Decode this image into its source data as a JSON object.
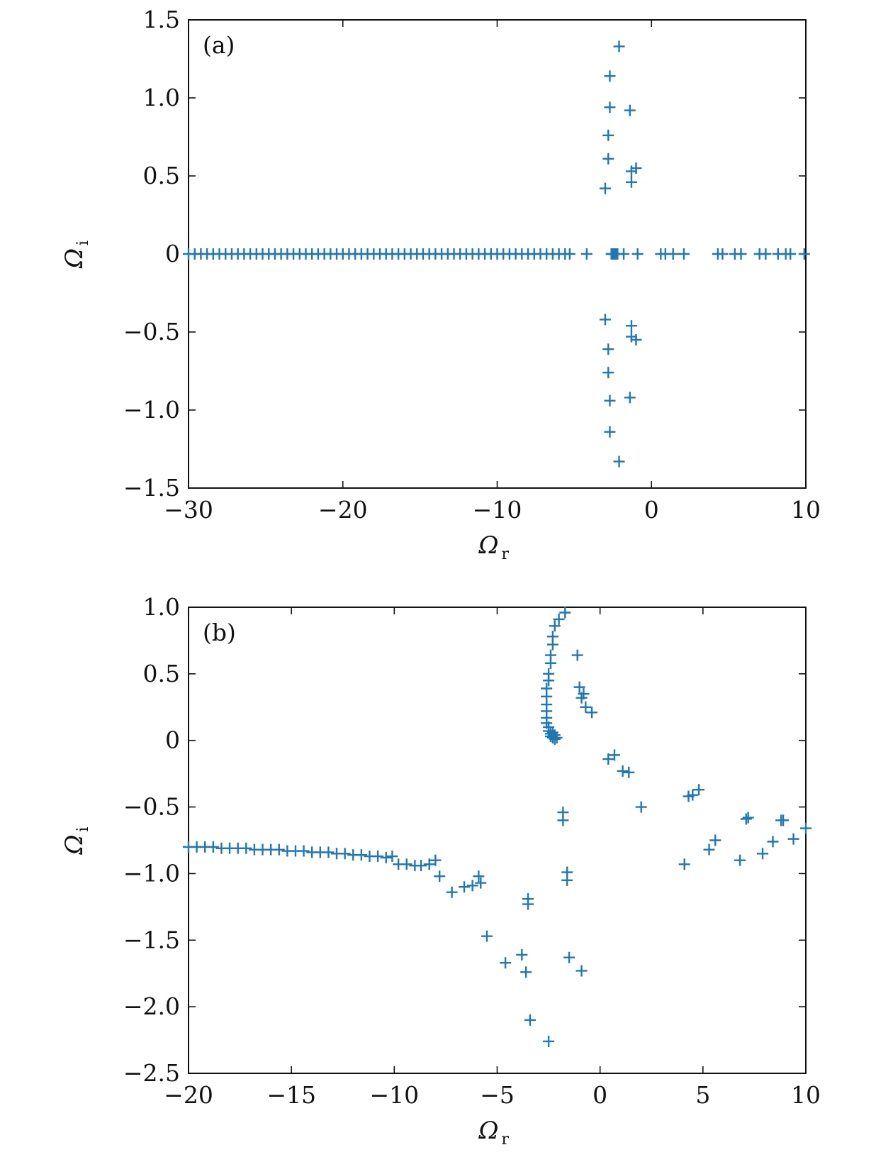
{
  "colors": {
    "marker": "#1f77b4",
    "axis": "#111111"
  },
  "chart_data": [
    {
      "type": "scatter",
      "panel_label": "(a)",
      "marker": "plus",
      "xlabel": {
        "symbol": "Ω",
        "sub": "r"
      },
      "ylabel": {
        "symbol": "Ω",
        "sub": "i"
      },
      "xlim": [
        -30,
        10
      ],
      "ylim": [
        -1.5,
        1.5
      ],
      "xticks": [
        -30,
        -20,
        -10,
        0,
        10
      ],
      "xtick_labels": [
        "−30",
        "−20",
        "−10",
        "0",
        "10"
      ],
      "yticks": [
        -1.5,
        -1.0,
        -0.5,
        0,
        0.5,
        1.0,
        1.5
      ],
      "ytick_labels": [
        "−1.5",
        "−1.0",
        "−0.5",
        "0",
        "0.5",
        "1.0",
        "1.5"
      ],
      "points": [
        [
          -30,
          0
        ],
        [
          -29.6,
          0
        ],
        [
          -29.2,
          0
        ],
        [
          -28.8,
          0
        ],
        [
          -28.4,
          0
        ],
        [
          -28,
          0
        ],
        [
          -27.6,
          0
        ],
        [
          -27.2,
          0
        ],
        [
          -26.8,
          0
        ],
        [
          -26.4,
          0
        ],
        [
          -26,
          0
        ],
        [
          -25.6,
          0
        ],
        [
          -25.2,
          0
        ],
        [
          -24.8,
          0
        ],
        [
          -24.4,
          0
        ],
        [
          -24,
          0
        ],
        [
          -23.6,
          0
        ],
        [
          -23.2,
          0
        ],
        [
          -22.8,
          0
        ],
        [
          -22.4,
          0
        ],
        [
          -22,
          0
        ],
        [
          -21.6,
          0
        ],
        [
          -21.2,
          0
        ],
        [
          -20.8,
          0
        ],
        [
          -20.4,
          0
        ],
        [
          -20,
          0
        ],
        [
          -19.6,
          0
        ],
        [
          -19.2,
          0
        ],
        [
          -18.8,
          0
        ],
        [
          -18.4,
          0
        ],
        [
          -18,
          0
        ],
        [
          -17.6,
          0
        ],
        [
          -17.2,
          0
        ],
        [
          -16.8,
          0
        ],
        [
          -16.4,
          0
        ],
        [
          -16,
          0
        ],
        [
          -15.6,
          0
        ],
        [
          -15.2,
          0
        ],
        [
          -14.8,
          0
        ],
        [
          -14.4,
          0
        ],
        [
          -14,
          0
        ],
        [
          -13.6,
          0
        ],
        [
          -13.2,
          0
        ],
        [
          -12.8,
          0
        ],
        [
          -12.4,
          0
        ],
        [
          -12,
          0
        ],
        [
          -11.6,
          0
        ],
        [
          -11.2,
          0
        ],
        [
          -10.8,
          0
        ],
        [
          -10.4,
          0
        ],
        [
          -10,
          0
        ],
        [
          -9.6,
          0
        ],
        [
          -9.2,
          0
        ],
        [
          -8.8,
          0
        ],
        [
          -8.4,
          0
        ],
        [
          -8,
          0
        ],
        [
          -7.6,
          0
        ],
        [
          -7.2,
          0
        ],
        [
          -6.8,
          0
        ],
        [
          -6.4,
          0
        ],
        [
          -6,
          0
        ],
        [
          -5.6,
          0
        ],
        [
          -5.3,
          0
        ],
        [
          -4.2,
          0
        ],
        [
          -2.6,
          0
        ],
        [
          -2.5,
          0
        ],
        [
          -2.4,
          0
        ],
        [
          -2.3,
          0
        ],
        [
          -2.2,
          0
        ],
        [
          -1.8,
          0
        ],
        [
          -0.9,
          0
        ],
        [
          0.6,
          0
        ],
        [
          0.9,
          0
        ],
        [
          1.4,
          0
        ],
        [
          2.1,
          0
        ],
        [
          4.3,
          0
        ],
        [
          4.6,
          0
        ],
        [
          5.4,
          0
        ],
        [
          5.8,
          0
        ],
        [
          7.0,
          0
        ],
        [
          7.4,
          0
        ],
        [
          8.2,
          0
        ],
        [
          8.7,
          0
        ],
        [
          9.0,
          0
        ],
        [
          9.9,
          0
        ],
        [
          -2.1,
          1.33
        ],
        [
          -2.7,
          1.14
        ],
        [
          -2.7,
          0.94
        ],
        [
          -2.8,
          0.76
        ],
        [
          -2.8,
          0.61
        ],
        [
          -3.0,
          0.42
        ],
        [
          -1.4,
          0.92
        ],
        [
          -1.3,
          0.53
        ],
        [
          -1.3,
          0.46
        ],
        [
          -1.0,
          0.55
        ],
        [
          -2.1,
          -1.33
        ],
        [
          -2.7,
          -1.14
        ],
        [
          -2.7,
          -0.94
        ],
        [
          -2.8,
          -0.76
        ],
        [
          -2.8,
          -0.61
        ],
        [
          -3.0,
          -0.42
        ],
        [
          -1.4,
          -0.92
        ],
        [
          -1.3,
          -0.53
        ],
        [
          -1.3,
          -0.46
        ],
        [
          -1.0,
          -0.55
        ]
      ]
    },
    {
      "type": "scatter",
      "panel_label": "(b)",
      "marker": "plus",
      "xlabel": {
        "symbol": "Ω",
        "sub": "r"
      },
      "ylabel": {
        "symbol": "Ω",
        "sub": "i"
      },
      "xlim": [
        -20,
        10
      ],
      "ylim": [
        -2.5,
        1.0
      ],
      "xticks": [
        -20,
        -15,
        -10,
        -5,
        0,
        5,
        10
      ],
      "xtick_labels": [
        "−20",
        "−15",
        "−10",
        "−5",
        "0",
        "5",
        "10"
      ],
      "yticks": [
        -2.5,
        -2.0,
        -1.5,
        -1.0,
        -0.5,
        0,
        0.5,
        1.0
      ],
      "ytick_labels": [
        "−2.5",
        "−2.0",
        "−1.5",
        "−1.0",
        "−0.5",
        "0",
        "0.5",
        "1.0"
      ],
      "points": [
        [
          -20,
          -0.8
        ],
        [
          -19.6,
          -0.8
        ],
        [
          -19.2,
          -0.8
        ],
        [
          -18.8,
          -0.8
        ],
        [
          -18.4,
          -0.81
        ],
        [
          -18,
          -0.81
        ],
        [
          -17.6,
          -0.81
        ],
        [
          -17.2,
          -0.81
        ],
        [
          -16.8,
          -0.82
        ],
        [
          -16.4,
          -0.82
        ],
        [
          -16,
          -0.82
        ],
        [
          -15.6,
          -0.82
        ],
        [
          -15.2,
          -0.83
        ],
        [
          -14.8,
          -0.83
        ],
        [
          -14.4,
          -0.83
        ],
        [
          -14,
          -0.84
        ],
        [
          -13.6,
          -0.84
        ],
        [
          -13.2,
          -0.84
        ],
        [
          -12.8,
          -0.85
        ],
        [
          -12.4,
          -0.85
        ],
        [
          -12,
          -0.86
        ],
        [
          -11.6,
          -0.86
        ],
        [
          -11.2,
          -0.87
        ],
        [
          -10.8,
          -0.87
        ],
        [
          -10.4,
          -0.88
        ],
        [
          -10.1,
          -0.87
        ],
        [
          -9.8,
          -0.93
        ],
        [
          -9.4,
          -0.93
        ],
        [
          -9.0,
          -0.94
        ],
        [
          -8.7,
          -0.94
        ],
        [
          -8.3,
          -0.93
        ],
        [
          -8.0,
          -0.9
        ],
        [
          -7.8,
          -1.02
        ],
        [
          -7.2,
          -1.14
        ],
        [
          -6.6,
          -1.1
        ],
        [
          -6.2,
          -1.09
        ],
        [
          -5.9,
          -1.02
        ],
        [
          -5.8,
          -1.07
        ],
        [
          -5.5,
          -1.47
        ],
        [
          -4.6,
          -1.67
        ],
        [
          -3.8,
          -1.61
        ],
        [
          -3.6,
          -1.74
        ],
        [
          -3.5,
          -1.19
        ],
        [
          -3.5,
          -1.23
        ],
        [
          -3.4,
          -2.1
        ],
        [
          -2.5,
          -2.26
        ],
        [
          -1.8,
          -0.54
        ],
        [
          -1.8,
          -0.6
        ],
        [
          -1.6,
          -0.99
        ],
        [
          -1.6,
          -1.05
        ],
        [
          -1.5,
          -1.63
        ],
        [
          -0.9,
          -1.73
        ],
        [
          0.4,
          -0.14
        ],
        [
          0.7,
          -0.11
        ],
        [
          1.1,
          -0.23
        ],
        [
          1.4,
          -0.24
        ],
        [
          2.0,
          -0.5
        ],
        [
          4.1,
          -0.93
        ],
        [
          4.3,
          -0.42
        ],
        [
          4.5,
          -0.41
        ],
        [
          4.8,
          -0.37
        ],
        [
          5.3,
          -0.82
        ],
        [
          5.6,
          -0.75
        ],
        [
          6.8,
          -0.9
        ],
        [
          7.1,
          -0.59
        ],
        [
          7.2,
          -0.58
        ],
        [
          7.9,
          -0.85
        ],
        [
          8.4,
          -0.76
        ],
        [
          8.8,
          -0.6
        ],
        [
          8.9,
          -0.6
        ],
        [
          9.4,
          -0.74
        ],
        [
          10.0,
          -0.66
        ],
        [
          -1.7,
          0.96
        ],
        [
          -2.0,
          0.91
        ],
        [
          -2.2,
          0.86
        ],
        [
          -2.3,
          0.78
        ],
        [
          -2.3,
          0.72
        ],
        [
          -2.4,
          0.64
        ],
        [
          -2.4,
          0.58
        ],
        [
          -2.5,
          0.5
        ],
        [
          -2.5,
          0.45
        ],
        [
          -2.6,
          0.39
        ],
        [
          -2.6,
          0.33
        ],
        [
          -2.6,
          0.27
        ],
        [
          -2.6,
          0.22
        ],
        [
          -2.6,
          0.17
        ],
        [
          -2.6,
          0.13
        ],
        [
          -2.5,
          0.1
        ],
        [
          -2.5,
          0.07
        ],
        [
          -2.4,
          0.05
        ],
        [
          -2.4,
          0.03
        ],
        [
          -2.3,
          0.02
        ],
        [
          -2.2,
          0.01
        ],
        [
          -2.1,
          0.02
        ],
        [
          -2.3,
          0.06
        ],
        [
          -2.2,
          0.04
        ],
        [
          -1.1,
          0.64
        ],
        [
          -1.0,
          0.4
        ],
        [
          -0.9,
          0.32
        ],
        [
          -0.8,
          0.35
        ],
        [
          -0.7,
          0.25
        ],
        [
          -0.4,
          0.21
        ]
      ]
    }
  ]
}
